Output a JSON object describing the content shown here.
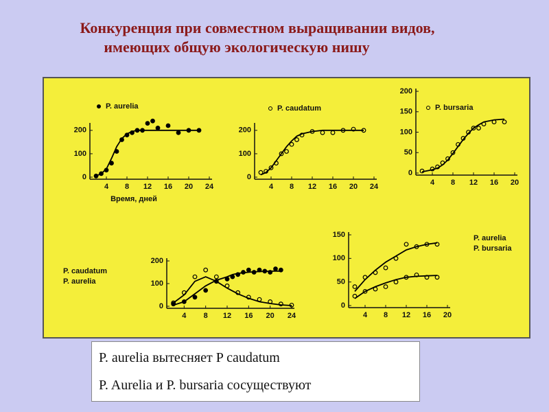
{
  "title": [
    "Конкуренция при совместном выращивании видов,",
    "имеющих общую экологическую нишу"
  ],
  "notes": [
    "P. aurelia вытесняет P caudatum",
    "P. Aurelia и P. bursaria сосуществуют"
  ],
  "chart_data": [
    {
      "type": "line",
      "xlabel": "Время, дней",
      "xlim": [
        0,
        24
      ],
      "xticks": [
        4,
        8,
        12,
        16,
        20,
        24
      ],
      "ylim": [
        0,
        220
      ],
      "yticks": [
        0,
        100,
        200
      ],
      "series": [
        {
          "name": "P. aurelia",
          "color": "#000000",
          "marker": "filled",
          "x": [
            2,
            3,
            4,
            5,
            6,
            7,
            8,
            9,
            10,
            11,
            12,
            13,
            14,
            16,
            18,
            20,
            22
          ],
          "values": [
            5,
            15,
            30,
            60,
            110,
            160,
            180,
            190,
            200,
            200,
            230,
            240,
            210,
            220,
            190,
            200,
            200
          ],
          "fit": [
            5,
            15,
            35,
            80,
            130,
            165,
            185,
            195,
            200,
            200,
            200,
            200,
            200,
            200,
            200,
            200,
            200
          ]
        }
      ]
    },
    {
      "type": "line",
      "xlim": [
        0,
        24
      ],
      "xticks": [
        4,
        8,
        12,
        16,
        20,
        24
      ],
      "ylim": [
        0,
        220
      ],
      "yticks": [
        0,
        100,
        200
      ],
      "series": [
        {
          "name": "P. caudatum",
          "color": "#000000",
          "marker": "open",
          "x": [
            2,
            3,
            4,
            5,
            6,
            7,
            8,
            9,
            10,
            12,
            14,
            16,
            18,
            20,
            22
          ],
          "values": [
            20,
            25,
            40,
            60,
            100,
            110,
            140,
            160,
            180,
            195,
            190,
            190,
            200,
            205,
            200
          ],
          "fit": [
            10,
            20,
            40,
            70,
            100,
            130,
            155,
            175,
            185,
            195,
            200,
            200,
            200,
            200,
            200
          ]
        }
      ]
    },
    {
      "type": "line",
      "xlim": [
        0,
        20
      ],
      "xticks": [
        4,
        8,
        12,
        16,
        20
      ],
      "ylim": [
        0,
        200
      ],
      "yticks": [
        0,
        50,
        100,
        150,
        200
      ],
      "series": [
        {
          "name": "P. bursaria",
          "color": "#000000",
          "marker": "open",
          "x": [
            2,
            4,
            5,
            6,
            7,
            8,
            9,
            10,
            11,
            12,
            13,
            14,
            16,
            18
          ],
          "values": [
            5,
            10,
            15,
            25,
            35,
            50,
            70,
            85,
            100,
            110,
            110,
            120,
            125,
            125
          ],
          "fit": [
            3,
            8,
            12,
            20,
            32,
            48,
            65,
            82,
            97,
            110,
            118,
            125,
            130,
            132
          ]
        }
      ]
    },
    {
      "type": "line",
      "xlim": [
        0,
        24
      ],
      "xticks": [
        4,
        8,
        12,
        16,
        20,
        24
      ],
      "ylim": [
        0,
        200
      ],
      "yticks": [
        0,
        100,
        200
      ],
      "series": [
        {
          "name": "P. caudatum",
          "color": "#000000",
          "marker": "open",
          "x": [
            2,
            4,
            6,
            8,
            10,
            12,
            14,
            16,
            18,
            20,
            22,
            24
          ],
          "values": [
            15,
            60,
            130,
            160,
            130,
            90,
            60,
            40,
            30,
            20,
            10,
            5
          ],
          "fit": [
            15,
            50,
            110,
            130,
            110,
            80,
            55,
            35,
            20,
            12,
            6,
            3
          ]
        },
        {
          "name": "P. aurelia",
          "color": "#000000",
          "marker": "filled",
          "x": [
            2,
            4,
            6,
            8,
            10,
            12,
            13,
            14,
            15,
            16,
            17,
            18,
            19,
            20,
            21,
            22
          ],
          "values": [
            10,
            20,
            40,
            70,
            110,
            120,
            130,
            140,
            150,
            160,
            150,
            160,
            155,
            150,
            165,
            160
          ],
          "fit": [
            5,
            20,
            55,
            90,
            115,
            130,
            140,
            145,
            148,
            150,
            152,
            153,
            154,
            155,
            155,
            155
          ]
        }
      ]
    },
    {
      "type": "line",
      "xlim": [
        0,
        20
      ],
      "xticks": [
        4,
        8,
        12,
        16,
        20
      ],
      "ylim": [
        0,
        150
      ],
      "yticks": [
        0,
        50,
        100,
        150
      ],
      "series": [
        {
          "name": "P. aurelia",
          "color": "#000000",
          "marker": "open",
          "x": [
            2,
            4,
            6,
            8,
            10,
            12,
            14,
            16,
            18
          ],
          "values": [
            20,
            30,
            35,
            40,
            50,
            60,
            65,
            60,
            60
          ],
          "fit": [
            15,
            30,
            40,
            48,
            55,
            60,
            62,
            63,
            64
          ]
        },
        {
          "name": "P.  bursaria",
          "color": "#000000",
          "marker": "open",
          "x": [
            2,
            4,
            6,
            8,
            10,
            12,
            14,
            16,
            18
          ],
          "values": [
            40,
            60,
            70,
            80,
            100,
            130,
            125,
            130,
            130
          ],
          "fit": [
            30,
            55,
            75,
            92,
            105,
            118,
            125,
            130,
            133
          ]
        }
      ]
    }
  ]
}
